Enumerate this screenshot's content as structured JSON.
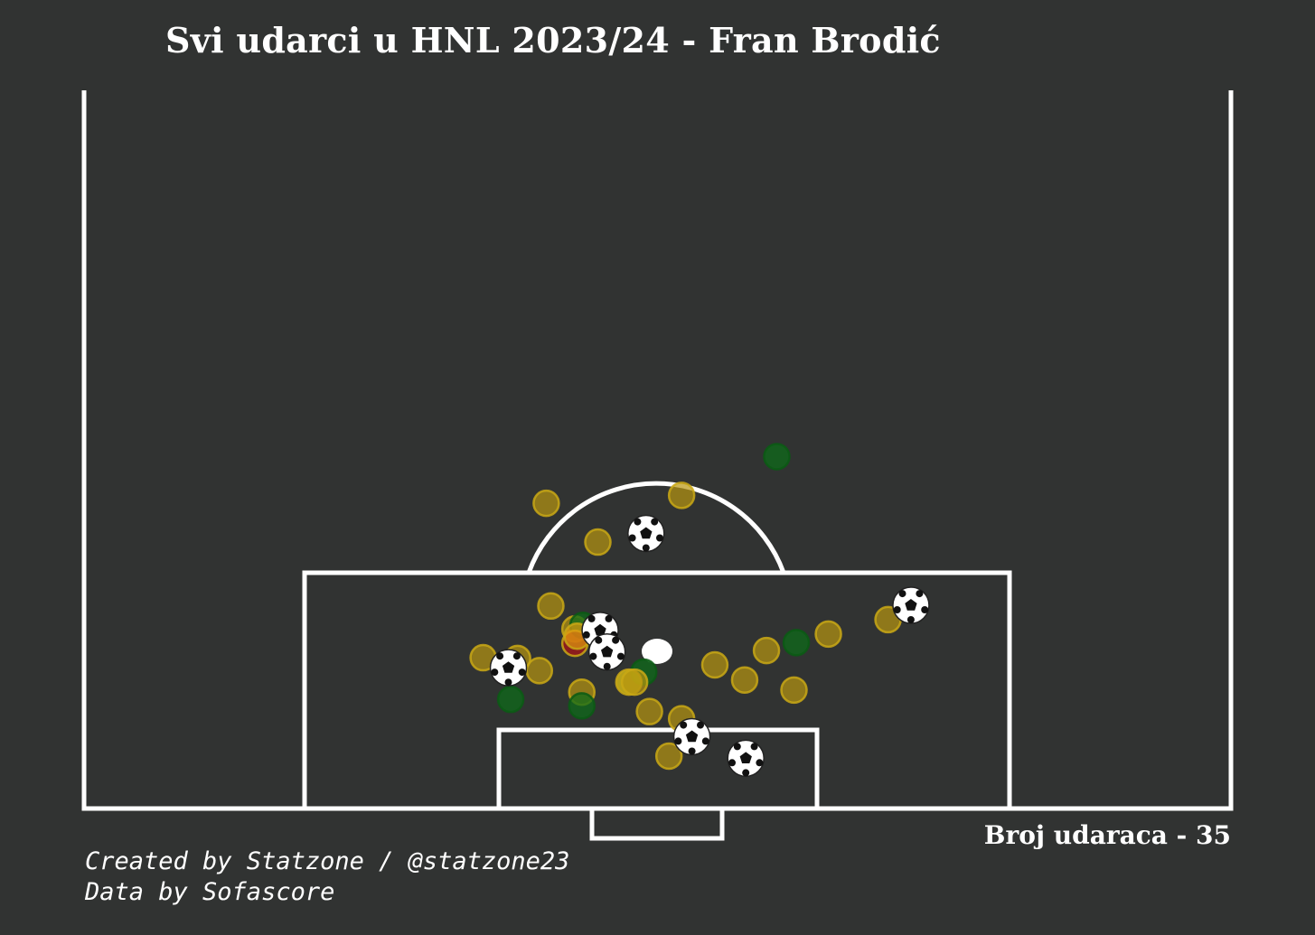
{
  "title": "Svi udarci u HNL 2023/24 - Fran Brodić",
  "shot_count_text": "Broj udaraca - 35",
  "credits": {
    "created_by": "Created by Statzone / @statzone23",
    "data_by": "Data by Sofascore"
  },
  "colors": {
    "background": "#313332",
    "lines": "#ffffff",
    "goal": "#ffffff",
    "saved": "#b8960f",
    "missed": "#0e6b1a",
    "blocked": "#b01414",
    "woodwork": "#e09a10",
    "on_target_light": "#f0d010"
  },
  "chart_data": {
    "type": "scatter",
    "title": "Svi udarci u HNL 2023/24 - Fran Brodić",
    "pitch": "half (attacking third), vertical",
    "units": "pitch coordinates: x across width (0-100), y distance from goal line (0-100 of half)",
    "total_shots": 35,
    "shots": [
      {
        "x": 40.3,
        "y": 42.5,
        "outcome": "saved"
      },
      {
        "x": 52.1,
        "y": 43.6,
        "outcome": "saved"
      },
      {
        "x": 60.4,
        "y": 49.0,
        "outcome": "missed"
      },
      {
        "x": 44.8,
        "y": 37.1,
        "outcome": "saved"
      },
      {
        "x": 49.0,
        "y": 38.3,
        "outcome": "goal"
      },
      {
        "x": 40.7,
        "y": 28.2,
        "outcome": "saved"
      },
      {
        "x": 42.8,
        "y": 25.0,
        "outcome": "saved"
      },
      {
        "x": 43.5,
        "y": 25.5,
        "outcome": "missed"
      },
      {
        "x": 42.8,
        "y": 23.0,
        "outcome": "blocked"
      },
      {
        "x": 43.0,
        "y": 24.0,
        "outcome": "woodwork"
      },
      {
        "x": 45.0,
        "y": 24.8,
        "outcome": "goal"
      },
      {
        "x": 45.6,
        "y": 21.8,
        "outcome": "goal"
      },
      {
        "x": 34.8,
        "y": 21.0,
        "outcome": "saved"
      },
      {
        "x": 37.8,
        "y": 20.9,
        "outcome": "saved"
      },
      {
        "x": 37.0,
        "y": 19.6,
        "outcome": "goal"
      },
      {
        "x": 39.7,
        "y": 19.2,
        "outcome": "saved"
      },
      {
        "x": 37.2,
        "y": 15.2,
        "outcome": "missed"
      },
      {
        "x": 43.4,
        "y": 16.2,
        "outcome": "saved"
      },
      {
        "x": 43.4,
        "y": 14.3,
        "outcome": "missed"
      },
      {
        "x": 48.8,
        "y": 19.0,
        "outcome": "missed"
      },
      {
        "x": 47.5,
        "y": 17.6,
        "outcome": "on_target"
      },
      {
        "x": 48.0,
        "y": 17.6,
        "outcome": "saved"
      },
      {
        "x": 49.3,
        "y": 13.5,
        "outcome": "saved"
      },
      {
        "x": 52.1,
        "y": 12.5,
        "outcome": "saved"
      },
      {
        "x": 53.0,
        "y": 10.0,
        "outcome": "goal"
      },
      {
        "x": 51.0,
        "y": 7.3,
        "outcome": "saved"
      },
      {
        "x": 57.7,
        "y": 7.0,
        "outcome": "goal"
      },
      {
        "x": 55.0,
        "y": 20.0,
        "outcome": "saved"
      },
      {
        "x": 57.6,
        "y": 17.9,
        "outcome": "saved"
      },
      {
        "x": 59.5,
        "y": 22.0,
        "outcome": "saved"
      },
      {
        "x": 62.1,
        "y": 23.1,
        "outcome": "missed"
      },
      {
        "x": 61.9,
        "y": 16.5,
        "outcome": "saved"
      },
      {
        "x": 64.9,
        "y": 24.3,
        "outcome": "saved"
      },
      {
        "x": 70.1,
        "y": 26.3,
        "outcome": "saved"
      },
      {
        "x": 72.1,
        "y": 28.3,
        "outcome": "goal"
      }
    ]
  }
}
